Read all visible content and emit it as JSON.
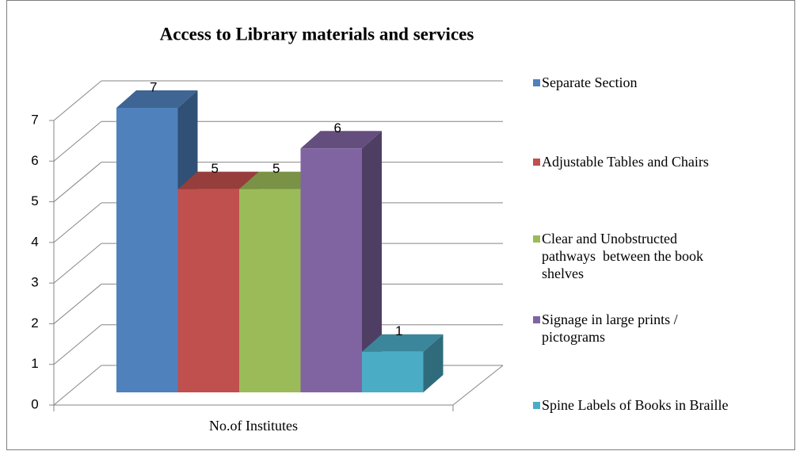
{
  "chart_data": {
    "type": "bar3d",
    "title": "Access to Library materials and services",
    "categories": [
      "No.of Institutes"
    ],
    "series": [
      {
        "name": "Separate Section",
        "color": "#4f81bd",
        "values": [
          7
        ]
      },
      {
        "name": "Adjustable Tables and Chairs",
        "color": "#c0504d",
        "values": [
          5
        ]
      },
      {
        "name": "Clear and Unobstructed pathways  between the book shelves",
        "color": "#9bbb59",
        "values": [
          5
        ]
      },
      {
        "name": "Signage in large prints / pictograms",
        "color": "#8064a2",
        "values": [
          6
        ]
      },
      {
        "name": "Spine Labels of Books in Braille",
        "color": "#4bacc6",
        "values": [
          1
        ]
      }
    ],
    "ylim": [
      0,
      7
    ],
    "yticks": [
      0,
      1,
      2,
      3,
      4,
      5,
      6,
      7
    ],
    "grid": true,
    "legend": "right"
  }
}
